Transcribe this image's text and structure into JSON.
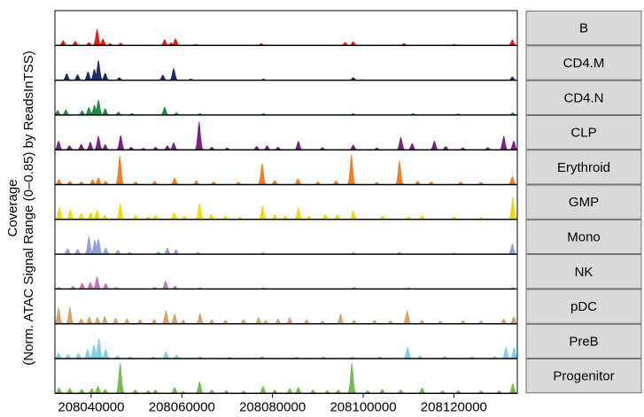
{
  "chart_data": {
    "type": "area",
    "ylabel_lines": [
      "Coverage",
      "(Norm. ATAC Signal Range (0–0.85) by ReadsInTSS)"
    ],
    "xlim": [
      208032000,
      208134000
    ],
    "ylim": [
      0,
      0.85
    ],
    "x_ticks": [
      208040000,
      208060000,
      208080000,
      208100000,
      208120000
    ],
    "x_tick_labels": [
      "208040000",
      "208060000",
      "208080000",
      "208100000",
      "208120000"
    ],
    "tracks": [
      {
        "name": "B",
        "color": "#E41A1C",
        "peaks": [
          [
            208033800,
            0.14
          ],
          [
            208036500,
            0.12
          ],
          [
            208039500,
            0.09
          ],
          [
            208041300,
            0.45
          ],
          [
            208042600,
            0.18
          ],
          [
            208044200,
            0.06
          ],
          [
            208046500,
            0.07
          ],
          [
            208056200,
            0.17
          ],
          [
            208057600,
            0.08
          ],
          [
            208058600,
            0.19
          ],
          [
            208063000,
            0.04
          ],
          [
            208077500,
            0.06
          ],
          [
            208096000,
            0.09
          ],
          [
            208097800,
            0.11
          ],
          [
            208109000,
            0.06
          ],
          [
            208120000,
            0.04
          ],
          [
            208132900,
            0.16
          ]
        ]
      },
      {
        "name": "CD4.M",
        "color": "#1F2A6B",
        "peaks": [
          [
            208034600,
            0.19
          ],
          [
            208037000,
            0.16
          ],
          [
            208039300,
            0.24
          ],
          [
            208040700,
            0.31
          ],
          [
            208041600,
            0.55
          ],
          [
            208043100,
            0.2
          ],
          [
            208046200,
            0.08
          ],
          [
            208055800,
            0.15
          ],
          [
            208058200,
            0.33
          ],
          [
            208062000,
            0.04
          ],
          [
            208078000,
            0.04
          ],
          [
            208097800,
            0.08
          ],
          [
            208132900,
            0.1
          ]
        ]
      },
      {
        "name": "CD4.N",
        "color": "#238B45",
        "peaks": [
          [
            208032600,
            0.13
          ],
          [
            208034400,
            0.15
          ],
          [
            208038000,
            0.12
          ],
          [
            208039500,
            0.21
          ],
          [
            208040700,
            0.28
          ],
          [
            208041600,
            0.42
          ],
          [
            208043100,
            0.18
          ],
          [
            208046000,
            0.09
          ],
          [
            208049000,
            0.05
          ],
          [
            208056200,
            0.22
          ],
          [
            208058800,
            0.07
          ],
          [
            208064000,
            0.05
          ],
          [
            208078000,
            0.05
          ],
          [
            208097800,
            0.05
          ],
          [
            208111000,
            0.05
          ],
          [
            208121000,
            0.04
          ],
          [
            208133000,
            0.07
          ]
        ]
      },
      {
        "name": "CLP",
        "color": "#7B1F8C",
        "peaks": [
          [
            208032800,
            0.25
          ],
          [
            208035200,
            0.12
          ],
          [
            208037800,
            0.16
          ],
          [
            208039800,
            0.22
          ],
          [
            208041600,
            0.38
          ],
          [
            208043100,
            0.15
          ],
          [
            208046500,
            0.4
          ],
          [
            208048800,
            0.08
          ],
          [
            208051500,
            0.05
          ],
          [
            208054200,
            0.08
          ],
          [
            208056800,
            0.12
          ],
          [
            208058200,
            0.2
          ],
          [
            208063800,
            0.78
          ],
          [
            208066600,
            0.08
          ],
          [
            208070000,
            0.06
          ],
          [
            208076500,
            0.1
          ],
          [
            208078800,
            0.12
          ],
          [
            208081200,
            0.08
          ],
          [
            208085700,
            0.24
          ],
          [
            208091000,
            0.07
          ],
          [
            208097800,
            0.14
          ],
          [
            208103000,
            0.06
          ],
          [
            208108300,
            0.35
          ],
          [
            208110800,
            0.18
          ],
          [
            208115700,
            0.25
          ],
          [
            208118200,
            0.1
          ],
          [
            208122000,
            0.06
          ],
          [
            208127500,
            0.07
          ],
          [
            208131000,
            0.38
          ],
          [
            208133200,
            0.25
          ]
        ]
      },
      {
        "name": "Erythroid",
        "color": "#F07E26",
        "peaks": [
          [
            208032900,
            0.15
          ],
          [
            208035300,
            0.1
          ],
          [
            208037800,
            0.08
          ],
          [
            208040300,
            0.14
          ],
          [
            208041600,
            0.19
          ],
          [
            208043200,
            0.1
          ],
          [
            208046300,
            0.8
          ],
          [
            208049800,
            0.08
          ],
          [
            208054000,
            0.1
          ],
          [
            208058400,
            0.19
          ],
          [
            208063200,
            0.11
          ],
          [
            208067000,
            0.08
          ],
          [
            208072500,
            0.07
          ],
          [
            208077700,
            0.59
          ],
          [
            208080500,
            0.12
          ],
          [
            208085600,
            0.17
          ],
          [
            208090000,
            0.08
          ],
          [
            208094000,
            0.11
          ],
          [
            208097400,
            0.83
          ],
          [
            208103000,
            0.07
          ],
          [
            208108000,
            0.66
          ],
          [
            208112000,
            0.1
          ],
          [
            208115000,
            0.08
          ],
          [
            208121500,
            0.08
          ],
          [
            208126000,
            0.07
          ],
          [
            208132900,
            0.23
          ]
        ]
      },
      {
        "name": "GMP",
        "color": "#F3D70F",
        "peaks": [
          [
            208033000,
            0.33
          ],
          [
            208035400,
            0.28
          ],
          [
            208037800,
            0.16
          ],
          [
            208039900,
            0.2
          ],
          [
            208041300,
            0.26
          ],
          [
            208043000,
            0.12
          ],
          [
            208046400,
            0.44
          ],
          [
            208049800,
            0.12
          ],
          [
            208052600,
            0.08
          ],
          [
            208054200,
            0.12
          ],
          [
            208058300,
            0.19
          ],
          [
            208060500,
            0.1
          ],
          [
            208063900,
            0.45
          ],
          [
            208066500,
            0.14
          ],
          [
            208069600,
            0.1
          ],
          [
            208072800,
            0.08
          ],
          [
            208077800,
            0.37
          ],
          [
            208080500,
            0.14
          ],
          [
            208082800,
            0.1
          ],
          [
            208085700,
            0.33
          ],
          [
            208088000,
            0.1
          ],
          [
            208091600,
            0.14
          ],
          [
            208094300,
            0.14
          ],
          [
            208097800,
            0.24
          ],
          [
            208104300,
            0.1
          ],
          [
            208110000,
            0.08
          ],
          [
            208113000,
            0.12
          ],
          [
            208120000,
            0.08
          ],
          [
            208126000,
            0.07
          ],
          [
            208133000,
            0.62
          ]
        ]
      },
      {
        "name": "Mono",
        "color": "#8FA3D8",
        "peaks": [
          [
            208034800,
            0.16
          ],
          [
            208037000,
            0.14
          ],
          [
            208039500,
            0.5
          ],
          [
            208040800,
            0.4
          ],
          [
            208041600,
            0.43
          ],
          [
            208043200,
            0.18
          ],
          [
            208045900,
            0.12
          ],
          [
            208048500,
            0.06
          ],
          [
            208054800,
            0.07
          ],
          [
            208056800,
            0.18
          ],
          [
            208058700,
            0.13
          ],
          [
            208063500,
            0.06
          ],
          [
            208078000,
            0.05
          ],
          [
            208097800,
            0.05
          ],
          [
            208108000,
            0.06
          ],
          [
            208120000,
            0.04
          ],
          [
            208132900,
            0.29
          ]
        ]
      },
      {
        "name": "NK",
        "color": "#C773B5",
        "peaks": [
          [
            208032900,
            0.05
          ],
          [
            208036000,
            0.08
          ],
          [
            208038000,
            0.17
          ],
          [
            208039800,
            0.19
          ],
          [
            208041300,
            0.34
          ],
          [
            208043200,
            0.16
          ],
          [
            208045500,
            0.05
          ],
          [
            208054000,
            0.05
          ],
          [
            208056400,
            0.23
          ],
          [
            208058500,
            0.09
          ],
          [
            208064000,
            0.04
          ],
          [
            208078000,
            0.04
          ],
          [
            208098000,
            0.05
          ],
          [
            208110000,
            0.04
          ],
          [
            208133000,
            0.04
          ]
        ]
      },
      {
        "name": "pDC",
        "color": "#D2A36E",
        "peaks": [
          [
            208032800,
            0.44
          ],
          [
            208035300,
            0.46
          ],
          [
            208037800,
            0.14
          ],
          [
            208039600,
            0.19
          ],
          [
            208041400,
            0.18
          ],
          [
            208043000,
            0.2
          ],
          [
            208045400,
            0.16
          ],
          [
            208047900,
            0.14
          ],
          [
            208050800,
            0.12
          ],
          [
            208053900,
            0.13
          ],
          [
            208056500,
            0.37
          ],
          [
            208058400,
            0.27
          ],
          [
            208060300,
            0.11
          ],
          [
            208064000,
            0.29
          ],
          [
            208066600,
            0.12
          ],
          [
            208069600,
            0.1
          ],
          [
            208073600,
            0.12
          ],
          [
            208076900,
            0.18
          ],
          [
            208078500,
            0.1
          ],
          [
            208081200,
            0.14
          ],
          [
            208083800,
            0.18
          ],
          [
            208087500,
            0.12
          ],
          [
            208091000,
            0.08
          ],
          [
            208095000,
            0.27
          ],
          [
            208098000,
            0.1
          ],
          [
            208102500,
            0.1
          ],
          [
            208106000,
            0.09
          ],
          [
            208109700,
            0.37
          ],
          [
            208113000,
            0.1
          ],
          [
            208117000,
            0.08
          ],
          [
            208122000,
            0.1
          ],
          [
            208126000,
            0.09
          ],
          [
            208131000,
            0.14
          ],
          [
            208133200,
            0.2
          ]
        ]
      },
      {
        "name": "PreB",
        "color": "#7FD0E6",
        "peaks": [
          [
            208032800,
            0.16
          ],
          [
            208034900,
            0.12
          ],
          [
            208037200,
            0.15
          ],
          [
            208039200,
            0.26
          ],
          [
            208040600,
            0.38
          ],
          [
            208041700,
            0.55
          ],
          [
            208043200,
            0.26
          ],
          [
            208045800,
            0.09
          ],
          [
            208048600,
            0.06
          ],
          [
            208053700,
            0.06
          ],
          [
            208056500,
            0.2
          ],
          [
            208058800,
            0.1
          ],
          [
            208064000,
            0.06
          ],
          [
            208070500,
            0.05
          ],
          [
            208077700,
            0.07
          ],
          [
            208085300,
            0.05
          ],
          [
            208091200,
            0.06
          ],
          [
            208097600,
            0.06
          ],
          [
            208103600,
            0.06
          ],
          [
            208109800,
            0.32
          ],
          [
            208112500,
            0.08
          ],
          [
            208118000,
            0.07
          ],
          [
            208124000,
            0.06
          ],
          [
            208129000,
            0.07
          ],
          [
            208131500,
            0.32
          ],
          [
            208133300,
            0.31
          ]
        ]
      },
      {
        "name": "Progenitor",
        "color": "#78B954",
        "peaks": [
          [
            208032900,
            0.16
          ],
          [
            208035300,
            0.15
          ],
          [
            208037900,
            0.12
          ],
          [
            208040100,
            0.14
          ],
          [
            208041500,
            0.2
          ],
          [
            208043100,
            0.12
          ],
          [
            208046400,
            0.84
          ],
          [
            208049700,
            0.1
          ],
          [
            208052600,
            0.08
          ],
          [
            208054200,
            0.1
          ],
          [
            208058400,
            0.17
          ],
          [
            208060300,
            0.06
          ],
          [
            208063900,
            0.33
          ],
          [
            208066600,
            0.1
          ],
          [
            208069800,
            0.08
          ],
          [
            208073600,
            0.07
          ],
          [
            208077900,
            0.2
          ],
          [
            208080500,
            0.1
          ],
          [
            208083800,
            0.14
          ],
          [
            208085700,
            0.17
          ],
          [
            208088900,
            0.1
          ],
          [
            208092100,
            0.08
          ],
          [
            208094500,
            0.1
          ],
          [
            208097500,
            0.84
          ],
          [
            208101000,
            0.08
          ],
          [
            208104200,
            0.12
          ],
          [
            208108300,
            0.1
          ],
          [
            208113000,
            0.16
          ],
          [
            208117500,
            0.08
          ],
          [
            208121000,
            0.08
          ],
          [
            208126000,
            0.08
          ],
          [
            208130000,
            0.08
          ],
          [
            208133000,
            0.28
          ]
        ]
      }
    ]
  }
}
